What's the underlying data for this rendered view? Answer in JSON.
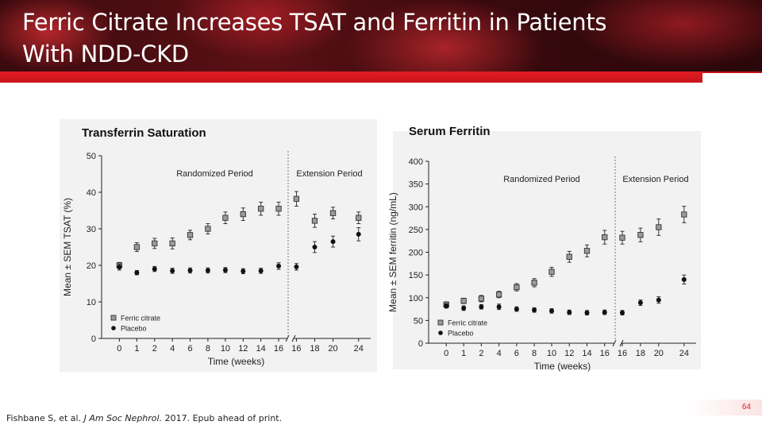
{
  "slide": {
    "title_line1": "Ferric Citrate Increases TSAT and Ferritin in Patients",
    "title_line2": "With NDD-CKD",
    "footnote_prefix": "Fishbane S, et al. ",
    "footnote_journal": "J Am Soc Nephrol.",
    "footnote_suffix": " 2017. Epub ahead of print.",
    "page_number": "64",
    "accent_color": "#e31b23"
  },
  "chart_data": [
    {
      "type": "scatter",
      "title": "Transferrin Saturation",
      "xlabel": "Time (weeks)",
      "ylabel": "Mean ± SEM TSAT (%)",
      "ylim": [
        0,
        50
      ],
      "yticks": [
        0,
        10,
        20,
        30,
        40,
        50
      ],
      "categories": [
        "0",
        "1",
        "2",
        "4",
        "6",
        "8",
        "10",
        "12",
        "14",
        "16",
        "16",
        "18",
        "20",
        "24"
      ],
      "period_labels": [
        "Randomized Period",
        "Extension Period"
      ],
      "legend": [
        "Ferric citrate",
        "Placebo"
      ],
      "series": [
        {
          "name": "Ferric citrate",
          "marker": "square",
          "values": [
            20,
            25,
            26,
            26,
            28.3,
            30,
            33,
            34,
            35.5,
            35.5,
            38.2,
            32.2,
            34.3,
            33
          ],
          "errors": [
            0.8,
            1.2,
            1.4,
            1.5,
            1.3,
            1.4,
            1.6,
            1.7,
            1.8,
            1.8,
            2,
            1.8,
            1.6,
            1.6
          ]
        },
        {
          "name": "Placebo",
          "marker": "circle",
          "values": [
            19.5,
            18,
            19,
            18.5,
            18.6,
            18.6,
            18.7,
            18.4,
            18.5,
            19.8,
            19.6,
            25,
            26.5,
            28.5
          ],
          "errors": [
            0.8,
            0.6,
            0.7,
            0.7,
            0.7,
            0.7,
            0.7,
            0.7,
            0.7,
            0.9,
            0.9,
            1.5,
            1.5,
            1.8
          ]
        }
      ]
    },
    {
      "type": "scatter",
      "title": "Serum Ferritin",
      "xlabel": "Time (weeks)",
      "ylabel": "Mean ± SEM ferritin (ng/mL)",
      "ylim": [
        0,
        400
      ],
      "yticks": [
        0,
        50,
        100,
        150,
        200,
        250,
        300,
        350,
        400
      ],
      "categories": [
        "0",
        "1",
        "2",
        "4",
        "6",
        "8",
        "10",
        "12",
        "14",
        "16",
        "16",
        "18",
        "20",
        "24"
      ],
      "period_labels": [
        "Randomized Period",
        "Extension Period"
      ],
      "legend": [
        "Ferric citrate",
        "Placebo"
      ],
      "series": [
        {
          "name": "Ferric citrate",
          "marker": "square",
          "values": [
            85,
            93,
            98,
            107,
            123,
            133,
            157,
            190,
            203,
            233,
            232,
            238,
            255,
            283
          ],
          "errors": [
            6,
            6,
            7,
            7,
            8,
            9,
            10,
            12,
            13,
            15,
            14,
            15,
            18,
            18
          ]
        },
        {
          "name": "Placebo",
          "marker": "circle",
          "values": [
            82,
            77,
            80,
            80,
            75,
            73,
            71,
            68,
            67,
            68,
            67,
            89,
            95,
            140
          ],
          "errors": [
            5,
            5,
            5,
            6,
            5,
            5,
            5,
            5,
            5,
            5,
            5,
            6,
            7,
            10
          ]
        }
      ]
    }
  ]
}
